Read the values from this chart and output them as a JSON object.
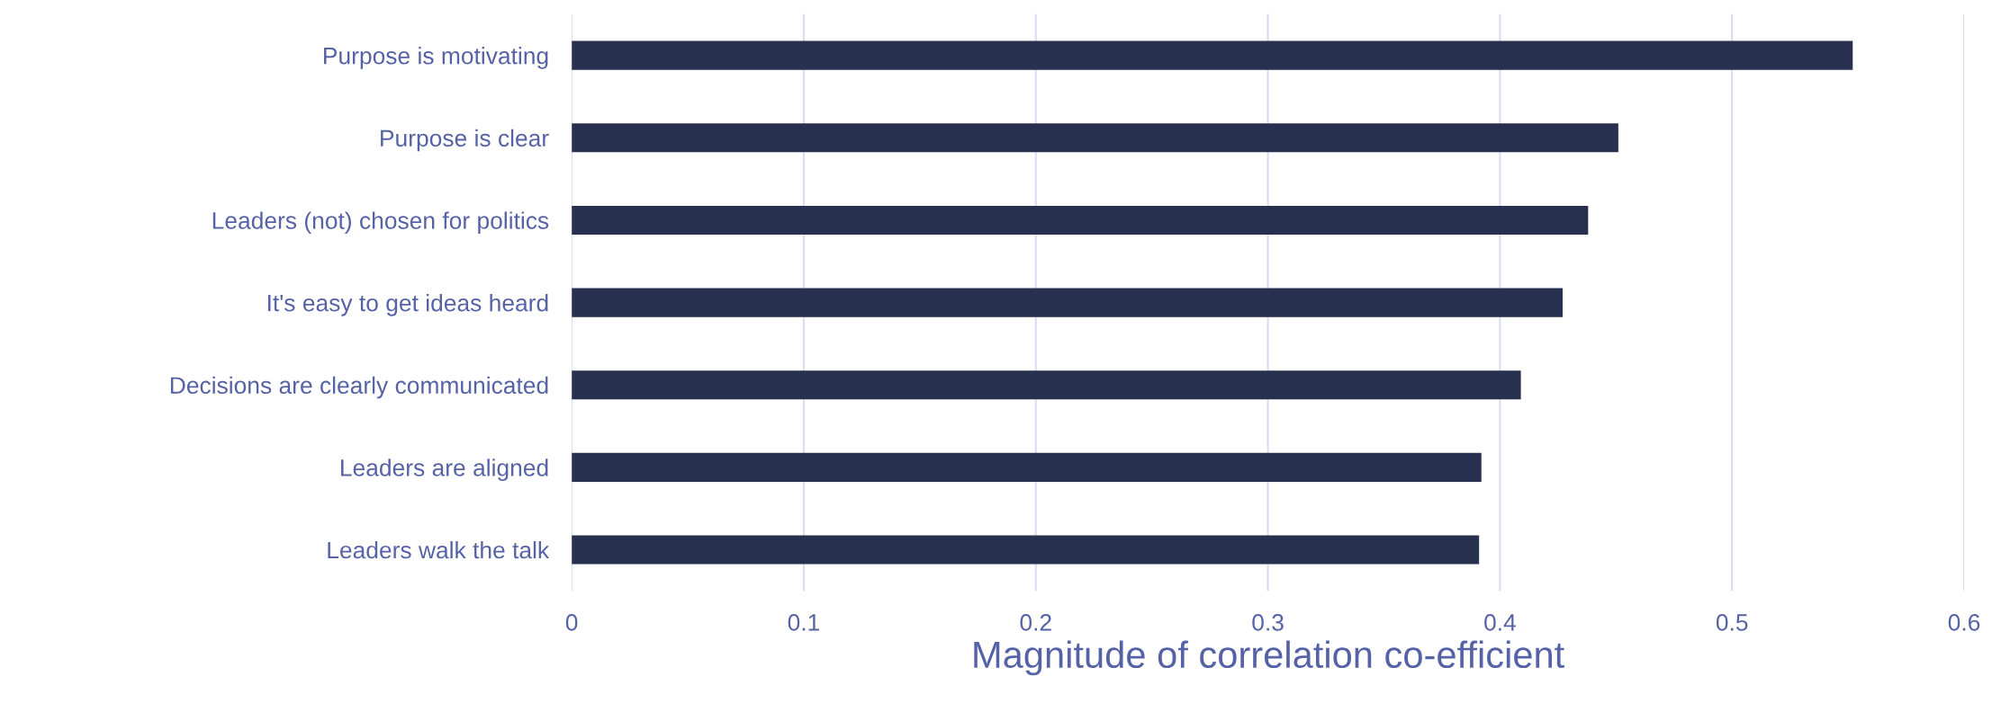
{
  "chart_data": {
    "type": "bar",
    "orientation": "horizontal",
    "categories": [
      "Purpose is motivating",
      "Purpose is clear",
      "Leaders (not) chosen for politics",
      "It's easy to get ideas heard",
      "Decisions are clearly communicated",
      "Leaders are aligned",
      "Leaders walk the talk"
    ],
    "values": [
      0.552,
      0.451,
      0.438,
      0.427,
      0.409,
      0.392,
      0.391
    ],
    "color": "#283050",
    "xlabel": "Magnitude of correlation co-efficient",
    "xlim": [
      0,
      0.6
    ],
    "xticks": [
      0,
      0.1,
      0.2,
      0.3,
      0.4,
      0.5,
      0.6
    ],
    "grid": "x"
  }
}
